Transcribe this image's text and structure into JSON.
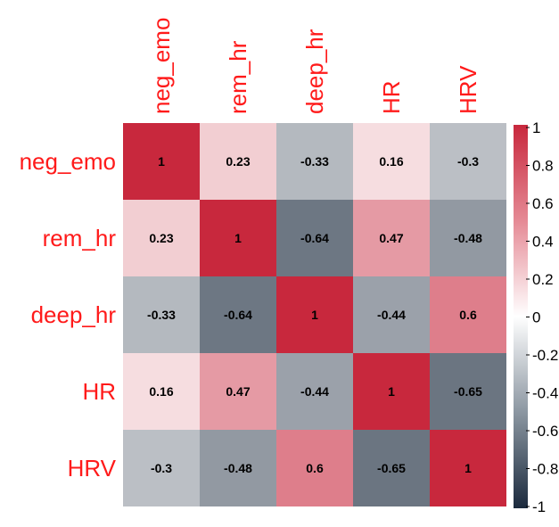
{
  "chart_data": {
    "type": "heatmap",
    "variables": [
      "neg_emo",
      "rem_hr",
      "deep_hr",
      "HR",
      "HRV"
    ],
    "matrix": [
      [
        1,
        0.23,
        -0.33,
        0.16,
        -0.3
      ],
      [
        0.23,
        1,
        -0.64,
        0.47,
        -0.48
      ],
      [
        -0.33,
        -0.64,
        1,
        -0.44,
        0.6
      ],
      [
        0.16,
        0.47,
        -0.44,
        1,
        -0.65
      ],
      [
        -0.3,
        -0.48,
        0.6,
        -0.65,
        1
      ]
    ],
    "colorbar": {
      "range": [
        -1,
        1
      ],
      "ticks": [
        "1",
        "0.8",
        "0.6",
        "0.4",
        "0.2",
        "0",
        "-0.2",
        "-0.4",
        "-0.6",
        "-0.8",
        "-1"
      ],
      "colors": {
        "low": "#1b2a3d",
        "mid": "#ffffff",
        "high": "#c8283d"
      }
    }
  }
}
